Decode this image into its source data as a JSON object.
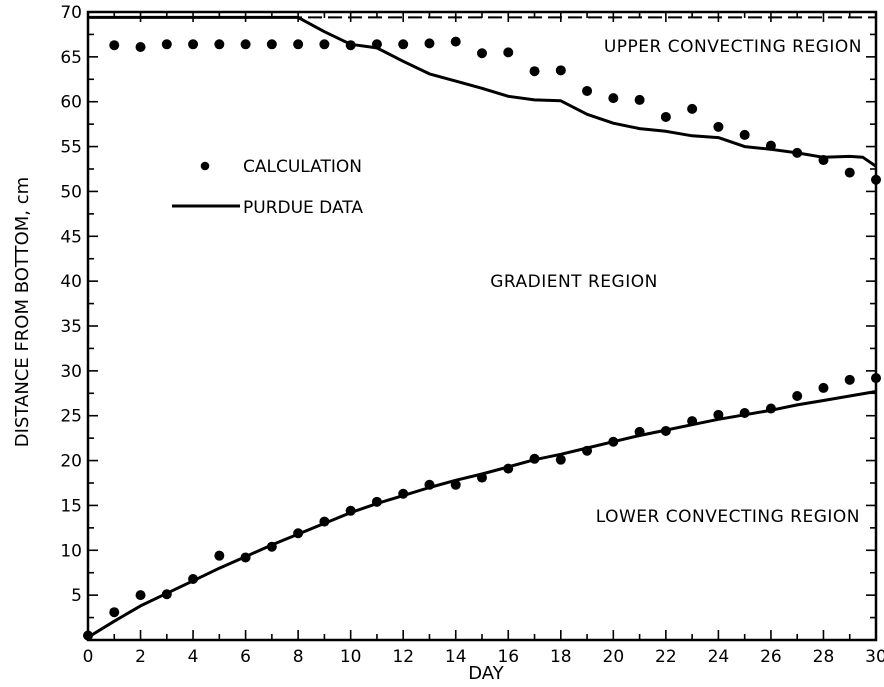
{
  "chart_data": {
    "type": "line",
    "xlabel": "DAY",
    "ylabel": "DISTANCE FROM BOTTOM,  cm",
    "xlim": [
      0,
      30
    ],
    "ylim": [
      0,
      70
    ],
    "xticks": [
      0,
      2,
      4,
      6,
      8,
      10,
      12,
      14,
      16,
      18,
      20,
      22,
      24,
      26,
      28,
      30
    ],
    "yticks": [
      5,
      10,
      15,
      20,
      25,
      30,
      35,
      40,
      45,
      50,
      55,
      60,
      65,
      70
    ],
    "grid": false,
    "legend_position": "upper-left",
    "legend": {
      "calculation_label": "CALCULATION",
      "purdue_label": "PURDUE DATA"
    },
    "annotations": {
      "upper": "UPPER CONVECTING REGION",
      "gradient": "GRADIENT REGION",
      "lower": "LOWER CONVECTING REGION"
    },
    "series": [
      {
        "name": "CALCULATION",
        "kind": "scatter",
        "group": "upper",
        "x": [
          1,
          2,
          3,
          4,
          5,
          6,
          7,
          8,
          9,
          10,
          11,
          12,
          13,
          14,
          15,
          16,
          17,
          18,
          19,
          20,
          21,
          22,
          23,
          24,
          25,
          26,
          27,
          28,
          29,
          30
        ],
        "y": [
          66.3,
          66.1,
          66.4,
          66.4,
          66.4,
          66.4,
          66.4,
          66.4,
          66.4,
          66.3,
          66.4,
          66.4,
          66.5,
          66.7,
          65.4,
          65.5,
          63.4,
          63.5,
          61.2,
          60.4,
          60.2,
          58.3,
          59.2,
          57.2,
          56.3,
          55.1,
          54.3,
          53.5,
          52.1,
          51.3
        ]
      },
      {
        "name": "CALCULATION",
        "kind": "scatter",
        "group": "lower",
        "x": [
          0,
          1,
          2,
          3,
          4,
          5,
          6,
          7,
          8,
          9,
          10,
          11,
          12,
          13,
          14,
          15,
          16,
          17,
          18,
          19,
          20,
          21,
          22,
          23,
          24,
          25,
          26,
          27,
          28,
          29,
          30
        ],
        "y": [
          0.5,
          3.1,
          5.0,
          5.1,
          6.8,
          9.4,
          9.2,
          10.4,
          11.9,
          13.2,
          14.4,
          15.4,
          16.3,
          17.3,
          17.3,
          18.1,
          19.1,
          20.2,
          20.1,
          21.1,
          22.1,
          23.2,
          23.3,
          24.4,
          25.1,
          25.3,
          25.8,
          27.2,
          28.1,
          29.0,
          29.2
        ]
      },
      {
        "name": "PURDUE DATA",
        "kind": "line",
        "group": "upper",
        "x": [
          0,
          1,
          2,
          3,
          4,
          5,
          6,
          7,
          8,
          9,
          10,
          11,
          12,
          13,
          14,
          15,
          16,
          17,
          18,
          19,
          20,
          21,
          22,
          23,
          24,
          25,
          26,
          27,
          28,
          29,
          29.5,
          30
        ],
        "y": [
          69.4,
          69.4,
          69.4,
          69.4,
          69.4,
          69.4,
          69.4,
          69.4,
          69.4,
          67.8,
          66.4,
          66.0,
          64.5,
          63.1,
          62.3,
          61.5,
          60.6,
          60.2,
          60.1,
          58.6,
          57.6,
          57.0,
          56.7,
          56.2,
          56.0,
          55.0,
          54.7,
          54.3,
          53.8,
          53.9,
          53.8,
          52.8
        ]
      },
      {
        "name": "PURDUE DATA",
        "kind": "line",
        "group": "lower",
        "x": [
          0,
          1,
          2,
          3,
          4,
          5,
          6,
          7,
          8,
          9,
          10,
          11,
          12,
          13,
          14,
          15,
          16,
          17,
          18,
          19,
          20,
          21,
          22,
          23,
          24,
          25,
          26,
          27,
          28,
          29,
          30
        ],
        "y": [
          0.3,
          2.1,
          3.8,
          5.2,
          6.6,
          8.0,
          9.3,
          10.6,
          11.8,
          13.0,
          14.2,
          15.2,
          16.1,
          17.0,
          17.8,
          18.5,
          19.3,
          20.1,
          20.7,
          21.4,
          22.1,
          22.8,
          23.4,
          24.0,
          24.6,
          25.1,
          25.6,
          26.2,
          26.7,
          27.2,
          27.7
        ]
      }
    ]
  }
}
